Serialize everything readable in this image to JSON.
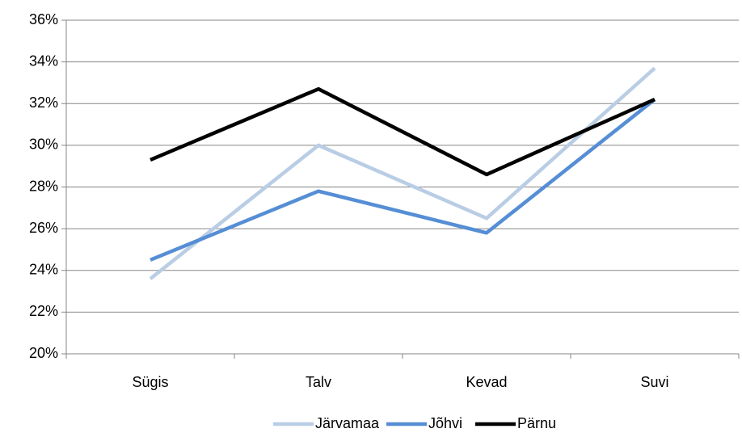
{
  "chart_data": {
    "type": "line",
    "categories": [
      "Sügis",
      "Talv",
      "Kevad",
      "Suvi"
    ],
    "series": [
      {
        "name": "Järvamaa",
        "color": "#b9cde5",
        "values": [
          23.6,
          30.0,
          26.5,
          33.7
        ]
      },
      {
        "name": "Jõhvi",
        "color": "#558ed5",
        "values": [
          24.5,
          27.8,
          25.8,
          32.2
        ]
      },
      {
        "name": "Pärnu",
        "color": "#000000",
        "values": [
          29.3,
          32.7,
          28.6,
          32.2
        ]
      }
    ],
    "ylim": [
      20,
      36
    ],
    "yticks": [
      {
        "value": 20,
        "label": "20%"
      },
      {
        "value": 22,
        "label": "22%"
      },
      {
        "value": 24,
        "label": "24%"
      },
      {
        "value": 26,
        "label": "26%"
      },
      {
        "value": 28,
        "label": "28%"
      },
      {
        "value": 30,
        "label": "30%"
      },
      {
        "value": 32,
        "label": "32%"
      },
      {
        "value": 34,
        "label": "34%"
      },
      {
        "value": 36,
        "label": "36%"
      }
    ],
    "grid": true,
    "legend": "bottom"
  }
}
